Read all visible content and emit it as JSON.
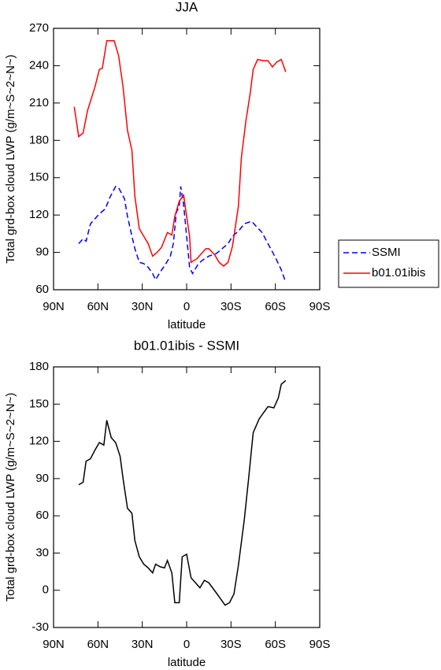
{
  "chart_data": [
    {
      "type": "line",
      "title": "JJA",
      "xlabel": "latitude",
      "ylabel": "Total grd-box cloud LWP (g/m~S~2~N~)",
      "xlim": [
        90,
        -90
      ],
      "xticks": [
        {
          "value": 90,
          "label": "90N"
        },
        {
          "value": 60,
          "label": "60N"
        },
        {
          "value": 30,
          "label": "30N"
        },
        0,
        {
          "value": -30,
          "label": "30S"
        },
        {
          "value": -60,
          "label": "60S"
        },
        {
          "value": -90,
          "label": "90S"
        }
      ],
      "ylim": [
        60,
        270
      ],
      "yticks": [
        60,
        90,
        120,
        150,
        180,
        210,
        240,
        270
      ],
      "legend": "right",
      "series": [
        {
          "name": "SSMI",
          "color": "#0000ff",
          "dash": "dashed",
          "x": [
            73,
            70,
            68,
            65,
            62,
            59,
            55,
            52,
            48,
            46,
            42,
            40,
            37,
            35,
            32,
            29,
            26,
            23,
            21,
            18,
            14,
            11,
            9,
            7,
            5,
            4,
            2,
            0,
            -2,
            -4,
            -8,
            -11,
            -15,
            -20,
            -24,
            -28,
            -31,
            -35,
            -39,
            -44,
            -47,
            -51,
            -55,
            -60,
            -64,
            -67
          ],
          "values": [
            97,
            101,
            99,
            113,
            117,
            121,
            125,
            134,
            143,
            142,
            133,
            119,
            103,
            93,
            82,
            81,
            78,
            73,
            68,
            74,
            81,
            87,
            97,
            122,
            127,
            143,
            128,
            103,
            78,
            73,
            81,
            84,
            87,
            89,
            93,
            97,
            103,
            107,
            113,
            115,
            111,
            106,
            97,
            86,
            76,
            66
          ]
        },
        {
          "name": "b01.01ibis",
          "color": "#ff0000",
          "dash": "solid",
          "x": [
            76,
            73,
            70,
            67,
            62,
            59,
            57,
            54,
            52,
            49,
            46,
            43,
            40,
            37,
            35,
            32,
            29,
            26,
            23,
            20,
            17,
            13,
            10,
            8,
            5,
            2,
            0.5,
            -2,
            -3,
            -7,
            -10,
            -13,
            -15,
            -19,
            -22,
            -25,
            -28,
            -31,
            -35,
            -37,
            -40,
            -43,
            -45,
            -48,
            -52,
            -55,
            -58,
            -61,
            -64,
            -67
          ],
          "values": [
            207,
            183,
            186,
            204,
            223,
            237,
            238,
            260,
            260,
            260,
            248,
            223,
            188,
            172,
            135,
            109,
            103,
            97,
            87,
            90,
            94,
            106,
            104,
            119,
            131,
            136,
            123,
            103,
            82,
            85,
            89,
            93,
            93,
            88,
            82,
            79,
            82,
            95,
            127,
            166,
            195,
            218,
            237,
            245,
            244,
            244,
            239,
            243,
            245,
            235
          ]
        }
      ]
    },
    {
      "type": "line",
      "title": "b01.01ibis - SSMI",
      "xlabel": "latitude",
      "ylabel": "Total grd-box cloud LWP (g/m~S~2~N~)",
      "xlim": [
        90,
        -90
      ],
      "xticks": [
        {
          "value": 90,
          "label": "90N"
        },
        {
          "value": 60,
          "label": "60N"
        },
        {
          "value": 30,
          "label": "30N"
        },
        0,
        {
          "value": -30,
          "label": "30S"
        },
        {
          "value": -60,
          "label": "60S"
        },
        {
          "value": -90,
          "label": "90S"
        }
      ],
      "ylim": [
        -30,
        180
      ],
      "yticks": [
        -30,
        0,
        30,
        60,
        90,
        120,
        150,
        180
      ],
      "color": "#000000",
      "x": [
        73,
        70,
        68,
        65,
        62,
        59,
        56,
        54,
        51,
        48,
        45,
        43,
        40,
        37,
        35,
        32,
        29,
        26,
        23,
        21,
        18,
        15,
        13,
        10,
        8,
        5,
        3,
        0,
        -3,
        -6,
        -9,
        -12,
        -15,
        -20,
        -23,
        -26,
        -29,
        -32,
        -35,
        -39,
        -42,
        -45,
        -49,
        -52,
        -55,
        -59,
        -62,
        -64,
        -67
      ],
      "values": [
        85,
        87,
        104,
        106,
        113,
        119,
        117,
        137,
        123,
        119,
        108,
        90,
        66,
        62,
        40,
        27,
        21,
        18,
        14,
        21,
        19,
        18,
        24,
        14,
        -10,
        -10,
        27,
        29,
        10,
        6,
        2,
        8,
        6,
        -2,
        -7,
        -12,
        -10,
        -3,
        20,
        57,
        91,
        127,
        138,
        143,
        148,
        147,
        155,
        166,
        169
      ]
    }
  ]
}
